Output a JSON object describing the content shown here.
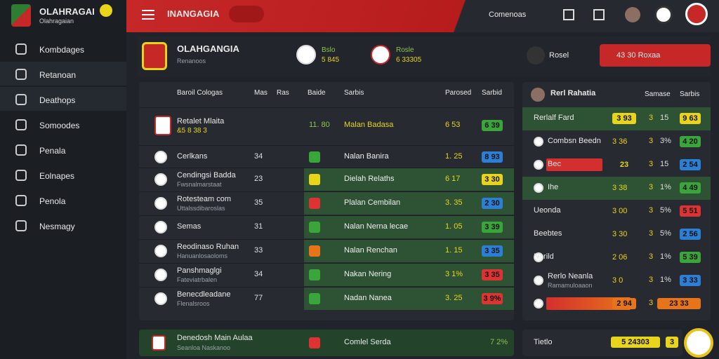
{
  "brand": {
    "title": "OLAHRAGAI",
    "subtitle": "Olahragaian"
  },
  "nav": [
    "Kombdages",
    "Retanoan",
    "Deathops",
    "Somoodes",
    "Penala",
    "Eolnapes",
    "Penola",
    "Nesmagy"
  ],
  "topbar": {
    "title": "INANGAGIA",
    "search": "Comenoas"
  },
  "match": {
    "title": "OLAHGANGIA",
    "subtitle": "Renanoos",
    "team1": {
      "name": "Bslo",
      "odds": "5 845"
    },
    "team2": {
      "name": "Rosle",
      "odds": "6 33305"
    },
    "button": "Rosel",
    "action": "43 30 Roxaa"
  },
  "table": {
    "headers": [
      "Baroil Cologas",
      "Mas",
      "Ras",
      "Baide",
      "Sarbis",
      "Parosed",
      "Sarbid"
    ],
    "rows": [
      [
        "Retalet Mlaita",
        "&5 8 38 3",
        "11. 80",
        "Malan Badasa",
        "6 53",
        "6 39"
      ],
      [
        "Cerlkans",
        "",
        "34",
        "Nalan Banira",
        "1. 25",
        "8 93"
      ],
      [
        "Cendingsi Badda",
        "Fwsnalmarstaat",
        "23",
        "Dielah Relaths",
        "6 17",
        "3 30"
      ],
      [
        "Rotesteam com",
        "Uttalssdibaroslas",
        "35",
        "Plalan Cembilan",
        "3. 35",
        "2 30"
      ],
      [
        "Semas",
        "",
        "31",
        "Nalan Nerna lecae",
        "1. 05",
        "3 39"
      ],
      [
        "Reodinaso Ruhan",
        "Hanuanlosaoloms",
        "33",
        "Nalan Renchan",
        "1. 15",
        "3 35"
      ],
      [
        "Panshmaglgi",
        "Fateviatrbalen",
        "34",
        "Nakan Nering",
        "3 1%",
        "3 35"
      ],
      [
        "Benecdleadane",
        "Flenalsroos",
        "77",
        "Nadan Nanea",
        "3. 25",
        "3 9%"
      ]
    ],
    "footer": [
      "Denedosh Main Aulaa",
      "Seanloa Naskanoo",
      "Comlel Serda",
      "7 2%"
    ]
  },
  "side": {
    "title": "Rerl Rahatia",
    "headers": [
      "Samase",
      "Sarbis"
    ],
    "rows": [
      [
        "Rerlalf Fard",
        "",
        "3 93",
        "3",
        "15",
        "9 63"
      ],
      [
        "Combsn Beedn",
        "",
        "3 36",
        "3",
        "3%",
        "4 20"
      ],
      [
        "Bec",
        "",
        "23",
        "3",
        "15",
        "2 54"
      ],
      [
        "Ihe",
        "",
        "3 38",
        "3",
        "1%",
        "4 49"
      ],
      [
        "Ueonda",
        "",
        "3 00",
        "3",
        "5%",
        "5 51"
      ],
      [
        "Beebtes",
        "",
        "3 30",
        "3",
        "5%",
        "2 56"
      ],
      [
        "Nerild",
        "",
        "2 06",
        "3",
        "1%",
        "5 39"
      ],
      [
        "Rerlo Neanla",
        "Ramamuloaaon",
        "3 0",
        "3",
        "1%",
        "3 33"
      ],
      [
        "",
        "",
        "2 94",
        "3",
        "",
        "23 33"
      ]
    ],
    "footer": [
      "Tietlo",
      "5 24303",
      "3"
    ]
  }
}
